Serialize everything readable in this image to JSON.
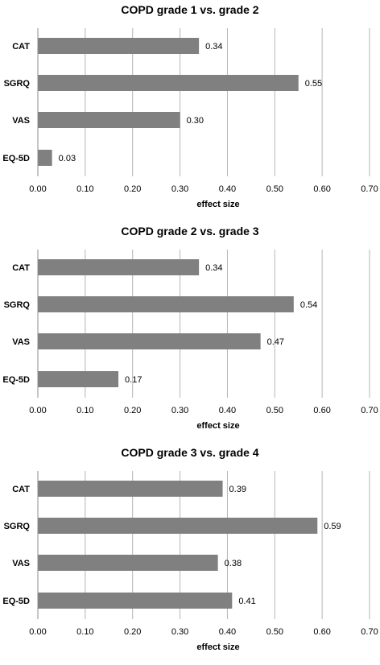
{
  "chart_data": [
    {
      "type": "bar",
      "orientation": "horizontal",
      "title": "COPD grade 1 vs. grade 2",
      "categories": [
        "CAT",
        "SGRQ",
        "VAS",
        "EQ-5D"
      ],
      "values": [
        0.34,
        0.55,
        0.3,
        0.03
      ],
      "value_labels": [
        "0.34",
        "0.55",
        "0.30",
        "0.03"
      ],
      "xlabel": "effect size",
      "xlim": [
        0,
        0.7
      ],
      "xticks": [
        "0.00",
        "0.10",
        "0.20",
        "0.30",
        "0.40",
        "0.50",
        "0.60",
        "0.70"
      ],
      "grid": "vertical",
      "bar_color": "#808080"
    },
    {
      "type": "bar",
      "orientation": "horizontal",
      "title": "COPD grade 2 vs. grade 3",
      "categories": [
        "CAT",
        "SGRQ",
        "VAS",
        "EQ-5D"
      ],
      "values": [
        0.34,
        0.54,
        0.47,
        0.17
      ],
      "value_labels": [
        "0.34",
        "0.54",
        "0.47",
        "0.17"
      ],
      "xlabel": "effect size",
      "xlim": [
        0,
        0.7
      ],
      "xticks": [
        "0.00",
        "0.10",
        "0.20",
        "0.30",
        "0.40",
        "0.50",
        "0.60",
        "0.70"
      ],
      "grid": "vertical",
      "bar_color": "#808080"
    },
    {
      "type": "bar",
      "orientation": "horizontal",
      "title": "COPD grade 3 vs. grade 4",
      "categories": [
        "CAT",
        "SGRQ",
        "VAS",
        "EQ-5D"
      ],
      "values": [
        0.39,
        0.59,
        0.38,
        0.41
      ],
      "value_labels": [
        "0.39",
        "0.59",
        "0.38",
        "0.41"
      ],
      "xlabel": "effect size",
      "xlim": [
        0,
        0.7
      ],
      "xticks": [
        "0.00",
        "0.10",
        "0.20",
        "0.30",
        "0.40",
        "0.50",
        "0.60",
        "0.70"
      ],
      "grid": "vertical",
      "bar_color": "#808080"
    }
  ]
}
